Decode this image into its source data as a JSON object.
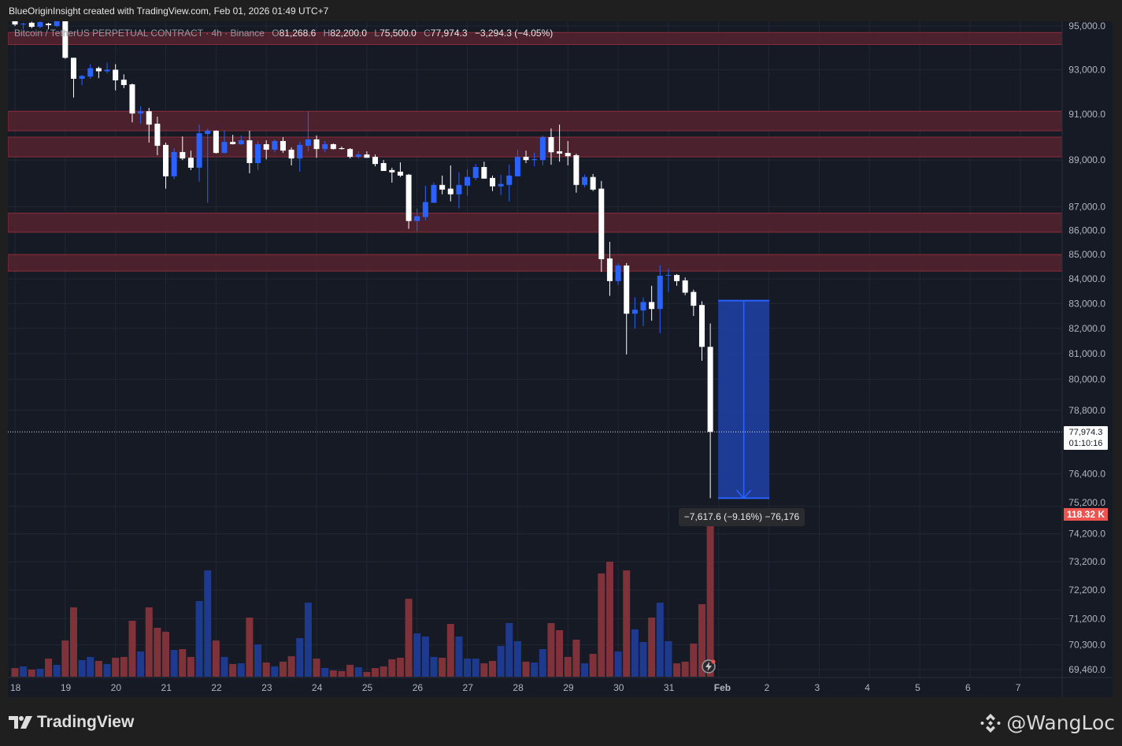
{
  "header": {
    "credit": "BlueOriginInsight created with TradingView.com, Feb 01, 2026 01:49 UTC+7"
  },
  "legend": {
    "title": "Bitcoin / TetherUS PERPETUAL CONTRACT · 4h · Binance",
    "o_label": "O",
    "open": "81,268.6",
    "h_label": "H",
    "high": "82,200.0",
    "l_label": "L",
    "low": "75,500.0",
    "c_label": "C",
    "close": "77,974.3",
    "change": "−3,294.3 (−4.05%)"
  },
  "price_tag": {
    "price": "77,974.3",
    "countdown": "01:10:16"
  },
  "volume_tag": {
    "value": "118.32 K"
  },
  "measure": {
    "label": "−7,617.6 (−9.16%) −76,176",
    "from_price": 83117.6,
    "to_price": 75500,
    "bars": 6
  },
  "branding": {
    "logo_text": "TradingView",
    "watermark": "@WangLoc"
  },
  "colors": {
    "up": "#2962ff",
    "down": "#ffffff",
    "vol_up": "#1e3a8f",
    "vol_down": "#7f323a",
    "zone_fill": "#4e222e",
    "zone_border": "#8b2e3a",
    "measure_fill": "#1e3fa0",
    "measure_border": "#2962ff"
  },
  "chart_data": {
    "type": "candlestick",
    "title": "Bitcoin / TetherUS PERPETUAL CONTRACT · 4h · Binance",
    "interval": "4h",
    "scale": "log",
    "ylim": [
      69200,
      95220
    ],
    "x_labels": [
      "18",
      "19",
      "20",
      "21",
      "22",
      "23",
      "24",
      "25",
      "26",
      "27",
      "28",
      "29",
      "30",
      "31",
      "Feb",
      "2",
      "3",
      "4",
      "5",
      "6",
      "7"
    ],
    "bars_per_label": 6,
    "y_ticks": [
      95000,
      93000,
      91000,
      89000,
      87000,
      86000,
      85000,
      84000,
      83000,
      82000,
      81000,
      80000,
      78800,
      76400,
      75200,
      74200,
      73200,
      72200,
      71200,
      70300,
      69460
    ],
    "y_tick_labels": [
      "95,000.0",
      "93,000.0",
      "91,000.0",
      "89,000.0",
      "87,000.0",
      "86,000.0",
      "85,000.0",
      "84,000.0",
      "83,000.0",
      "82,000.0",
      "81,000.0",
      "80,000.0",
      "78,800.0",
      "76,400.0",
      "75,200.0",
      "74,200.0",
      "73,200.0",
      "72,200.0",
      "71,200.0",
      "70,300.0",
      "69,460.0"
    ],
    "ohlc_fields": [
      "open",
      "high",
      "low",
      "close"
    ],
    "candles": [
      [
        95220,
        95300,
        95000,
        95070
      ],
      [
        95080,
        95150,
        94850,
        95110
      ],
      [
        95150,
        95200,
        94900,
        94960
      ],
      [
        94960,
        95250,
        94900,
        95180
      ],
      [
        95110,
        95150,
        94850,
        95040
      ],
      [
        95000,
        95300,
        94950,
        95220
      ],
      [
        95220,
        95400,
        93500,
        93540
      ],
      [
        93540,
        93550,
        91750,
        92590
      ],
      [
        92590,
        92760,
        92310,
        92720
      ],
      [
        92690,
        93250,
        92590,
        93070
      ],
      [
        93070,
        93140,
        92620,
        92930
      ],
      [
        92930,
        93320,
        92830,
        93000
      ],
      [
        93000,
        93250,
        92070,
        92520
      ],
      [
        92550,
        92790,
        92170,
        92310
      ],
      [
        92340,
        92380,
        90650,
        91040
      ],
      [
        91040,
        91360,
        90590,
        91140
      ],
      [
        91140,
        91290,
        89760,
        90550
      ],
      [
        90590,
        90900,
        89210,
        89620
      ],
      [
        89660,
        89760,
        87770,
        88300
      ],
      [
        88300,
        89520,
        88170,
        89350
      ],
      [
        89350,
        90030,
        89000,
        89070
      ],
      [
        89100,
        89410,
        88570,
        88670
      ],
      [
        88670,
        90550,
        88070,
        90170
      ],
      [
        90140,
        90380,
        87170,
        90280
      ],
      [
        90280,
        90300,
        89280,
        89310
      ],
      [
        89310,
        90280,
        89290,
        89790
      ],
      [
        89790,
        90100,
        89680,
        89690
      ],
      [
        89690,
        90070,
        89660,
        89860
      ],
      [
        89860,
        90280,
        88430,
        88870
      ],
      [
        88870,
        89830,
        88570,
        89690
      ],
      [
        89690,
        89860,
        89030,
        89450
      ],
      [
        89450,
        89900,
        89340,
        89830
      ],
      [
        89830,
        90000,
        89310,
        89410
      ],
      [
        89450,
        89550,
        88770,
        89070
      ],
      [
        89070,
        89790,
        88500,
        89660
      ],
      [
        89620,
        91140,
        89380,
        89900
      ],
      [
        89900,
        90070,
        89100,
        89480
      ],
      [
        89480,
        89830,
        89340,
        89690
      ],
      [
        89690,
        89720,
        89460,
        89480
      ],
      [
        89520,
        89590,
        89460,
        89480
      ],
      [
        89480,
        89520,
        89070,
        89140
      ],
      [
        89140,
        89380,
        89070,
        89240
      ],
      [
        89240,
        89380,
        89100,
        89100
      ],
      [
        89140,
        89240,
        88730,
        88830
      ],
      [
        88870,
        89000,
        88530,
        88530
      ],
      [
        88570,
        88670,
        88030,
        88470
      ],
      [
        88500,
        88900,
        88270,
        88330
      ],
      [
        88370,
        88400,
        86070,
        86400
      ],
      [
        86400,
        86930,
        85970,
        86600
      ],
      [
        86570,
        87900,
        86430,
        87200
      ],
      [
        87170,
        88030,
        87170,
        87930
      ],
      [
        87930,
        88330,
        87530,
        87730
      ],
      [
        87770,
        88770,
        87230,
        87530
      ],
      [
        87530,
        88470,
        86930,
        87930
      ],
      [
        87900,
        88600,
        87470,
        88270
      ],
      [
        88230,
        88830,
        88130,
        88700
      ],
      [
        88700,
        88930,
        88200,
        88200
      ],
      [
        88230,
        88330,
        87670,
        87870
      ],
      [
        87870,
        88370,
        87500,
        87970
      ],
      [
        87930,
        88800,
        87230,
        88330
      ],
      [
        88300,
        89450,
        88300,
        89140
      ],
      [
        89140,
        89410,
        88870,
        89000
      ],
      [
        89000,
        89310,
        88730,
        89040
      ],
      [
        89000,
        90070,
        88770,
        90000
      ],
      [
        90000,
        90380,
        88800,
        89340
      ],
      [
        89380,
        90550,
        88930,
        89280
      ],
      [
        89310,
        89830,
        88770,
        89170
      ],
      [
        89210,
        89280,
        87600,
        87930
      ],
      [
        87930,
        88370,
        87830,
        88270
      ],
      [
        88270,
        88400,
        87670,
        87730
      ],
      [
        87770,
        88100,
        84290,
        84810
      ],
      [
        84840,
        85530,
        83310,
        83910
      ],
      [
        83910,
        84650,
        83750,
        84550
      ],
      [
        84550,
        84650,
        80970,
        82590
      ],
      [
        82590,
        83250,
        82000,
        82750
      ],
      [
        82720,
        83250,
        82090,
        83060
      ],
      [
        83060,
        83720,
        82310,
        82780
      ],
      [
        82780,
        84550,
        81810,
        84130
      ],
      [
        84130,
        84420,
        83470,
        84160
      ],
      [
        84160,
        84200,
        83720,
        83910
      ],
      [
        83940,
        84060,
        83340,
        83440
      ],
      [
        83470,
        83560,
        82500,
        82910
      ],
      [
        82940,
        83090,
        80720,
        81268.6
      ],
      [
        81268.6,
        82200,
        75500,
        77974.3
      ]
    ],
    "volume_unit": "K",
    "volume": [
      6.2,
      7.4,
      5.1,
      5.7,
      13.0,
      8.5,
      26.0,
      49.8,
      11.9,
      14.2,
      11.3,
      9.1,
      13.6,
      14.2,
      40.2,
      18.1,
      49.8,
      35.1,
      32.3,
      19.2,
      19.8,
      14.2,
      54.3,
      76.4,
      26.0,
      14.2,
      9.1,
      9.6,
      42.5,
      23.2,
      10.2,
      7.4,
      10.8,
      14.7,
      27.7,
      53.2,
      13.0,
      6.2,
      4.5,
      4.0,
      8.5,
      6.8,
      3.4,
      6.2,
      7.4,
      12.5,
      13.6,
      56.0,
      31.1,
      28.9,
      14.2,
      13.6,
      37.9,
      28.9,
      13.0,
      13.0,
      9.6,
      11.3,
      22.1,
      38.5,
      25.5,
      10.8,
      10.2,
      19.8,
      38.5,
      33.4,
      14.2,
      26.6,
      9.6,
      16.4,
      74.2,
      82.6,
      18.1,
      76.4,
      34.0,
      24.9,
      42.5,
      53.2,
      25.5,
      9.6,
      10.8,
      23.8,
      52.1,
      118.32
    ],
    "zones": [
      [
        94150,
        94700
      ],
      [
        90280,
        91140
      ],
      [
        89140,
        90000
      ],
      [
        85930,
        86730
      ],
      [
        84320,
        85000
      ]
    ],
    "last_price": 77974.3
  }
}
